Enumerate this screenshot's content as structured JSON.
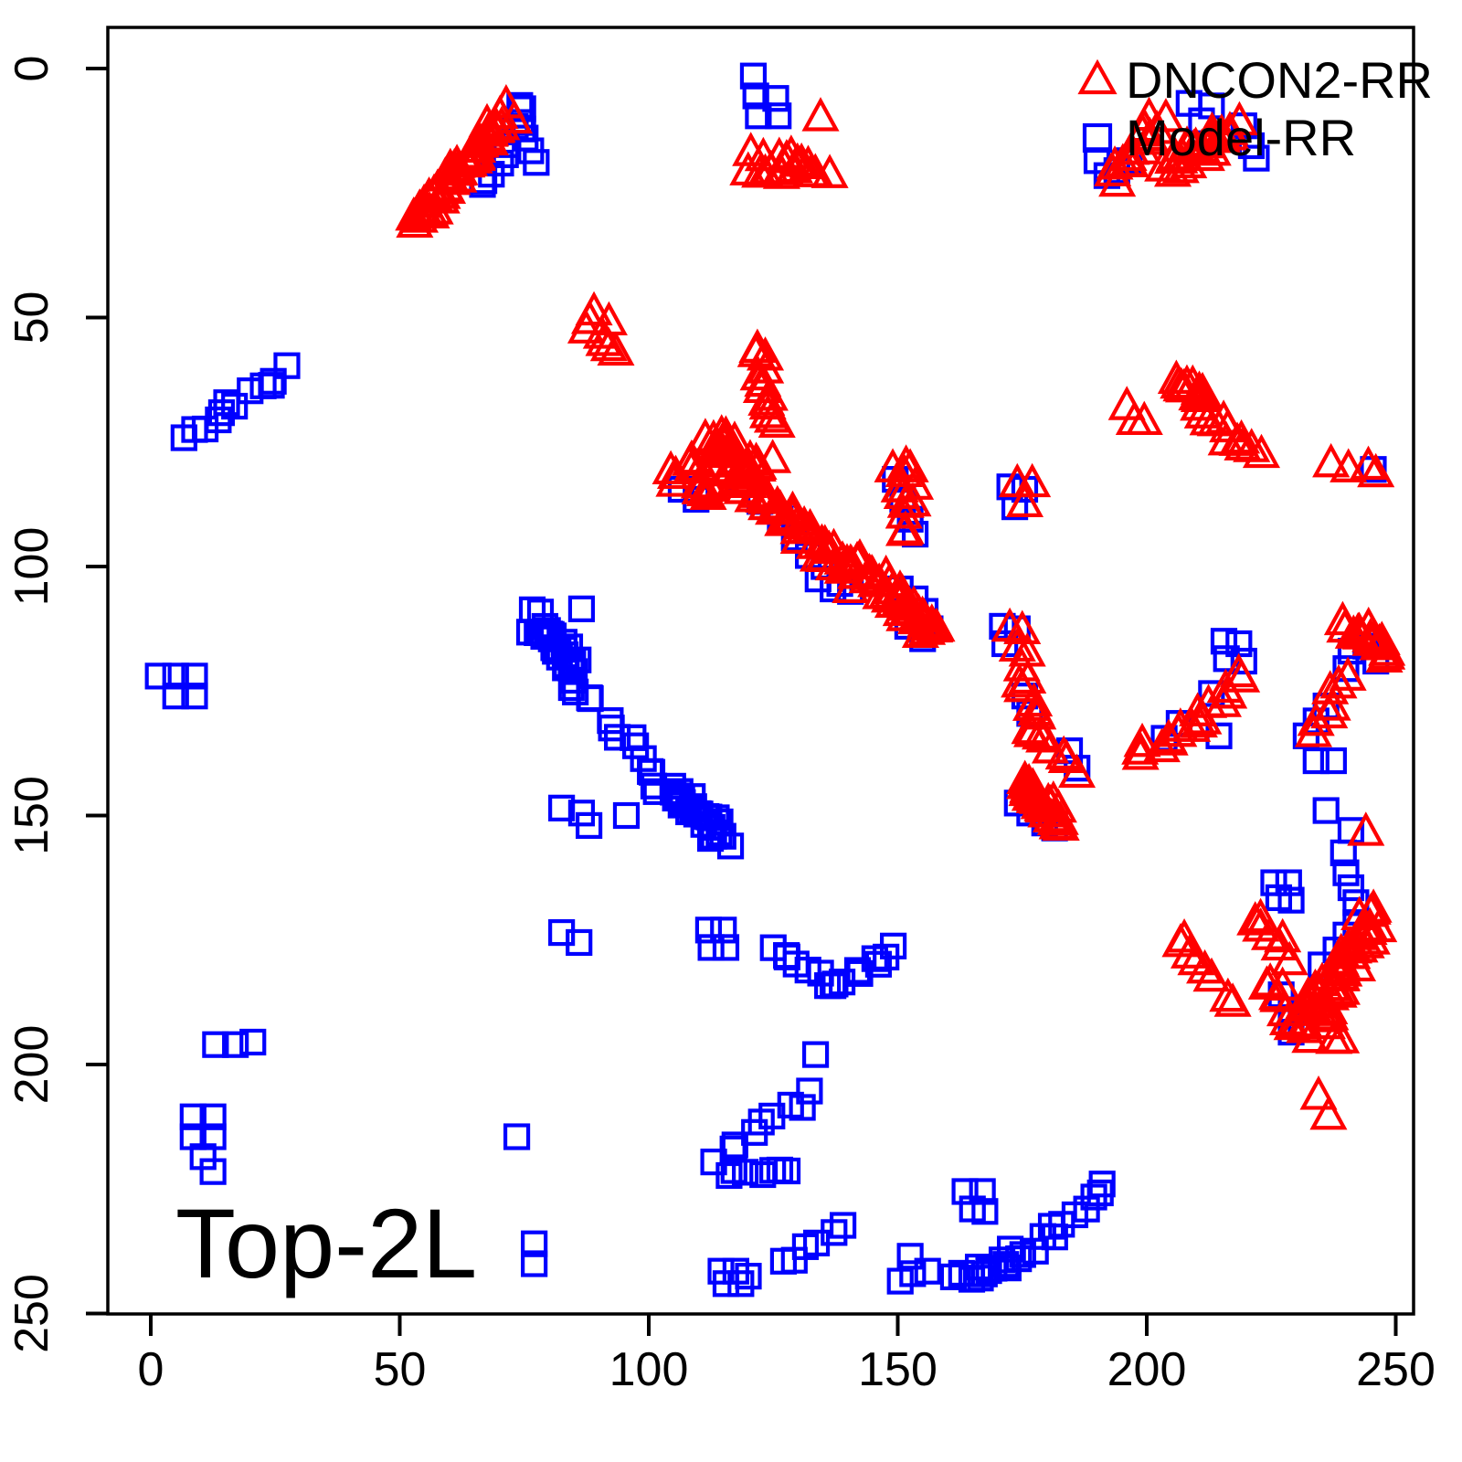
{
  "figure": {
    "background": "#FFFFFF",
    "box_color": "#000000",
    "annotation": "Top-2L"
  },
  "axes": {
    "x_ticks": [
      0,
      50,
      100,
      150,
      200,
      250
    ],
    "y_ticks": [
      0,
      50,
      100,
      150,
      200,
      250
    ],
    "xlim": [
      0,
      250
    ],
    "ylim": [
      0,
      250
    ],
    "y_inverted": true
  },
  "chart_data": {
    "type": "scatter",
    "title": "",
    "xlabel": "",
    "ylabel": "",
    "annotation": "Top-2L",
    "xlim": [
      0,
      250
    ],
    "ylim": [
      250,
      0
    ],
    "legend_position": "top-right",
    "grid": false,
    "series": [
      {
        "name": "DNCON2-RR",
        "marker": "triangle",
        "color": "#FF0000",
        "segments": [
          [
            52.5,
            31,
            72,
            9,
            36,
            1.6
          ],
          [
            54,
            29,
            70,
            12,
            18,
            1.2
          ],
          [
            87.5,
            50,
            93,
            57.5,
            6,
            1.2
          ],
          [
            121,
            20.5,
            135,
            20.5,
            12,
            1.4
          ],
          [
            126,
            17.5,
            130,
            18.5,
            4,
            0.8
          ],
          [
            193.5,
            22.5,
            202.5,
            10.5,
            16,
            1.8
          ],
          [
            204,
            21,
            218,
            12,
            20,
            2.0
          ],
          [
            206,
            19.5,
            213.5,
            14,
            10,
            1.5
          ],
          [
            121.5,
            57,
            124.5,
            71.5,
            13,
            1.5
          ],
          [
            105.5,
            82.5,
            117,
            75.5,
            14,
            2.0
          ],
          [
            109,
            85.5,
            121,
            78.5,
            14,
            2.0
          ],
          [
            112.5,
            73.5,
            123.5,
            80,
            12,
            1.8
          ],
          [
            117,
            81,
            142,
            101.5,
            26,
            1.6
          ],
          [
            120.5,
            84.5,
            140,
            103.5,
            16,
            1.5
          ],
          [
            142.5,
            99.5,
            158,
            114,
            28,
            1.8
          ],
          [
            146,
            103.5,
            156.5,
            112.5,
            12,
            1.5
          ],
          [
            150.5,
            80.5,
            152.5,
            93.5,
            9,
            1.3
          ],
          [
            206,
            62.5,
            222,
            79,
            18,
            1.6
          ],
          [
            206.5,
            63.5,
            212,
            66.5,
            6,
            1.2
          ],
          [
            240.5,
            111.5,
            249.5,
            118.5,
            16,
            1.5
          ],
          [
            239.5,
            122.5,
            234,
            133.5,
            7,
            1.1
          ],
          [
            174.5,
            121,
            177.5,
            131,
            8,
            1.2
          ],
          [
            177,
            132,
            185,
            141,
            8,
            1.3
          ],
          [
            174.5,
            143,
            182.5,
            151.5,
            18,
            1.8
          ],
          [
            176,
            145.5,
            183,
            152,
            10,
            1.4
          ],
          [
            197.5,
            138.5,
            210,
            131.5,
            10,
            1.4
          ],
          [
            210,
            130,
            219.5,
            123,
            8,
            1.4
          ],
          [
            206.5,
            174,
            217.5,
            187.5,
            8,
            1.4
          ],
          [
            221.5,
            170.5,
            229,
            178.5,
            7,
            1.2
          ],
          [
            231.5,
            189.5,
            245.5,
            169.5,
            26,
            1.6
          ],
          [
            234,
            190.5,
            247,
            172,
            16,
            1.4
          ],
          [
            224.5,
            183.5,
            232.5,
            195.5,
            12,
            1.5
          ],
          [
            235.5,
            188.5,
            238,
            195.5,
            6,
            1.3
          ]
        ],
        "points": [
          [
            134.5,
            10
          ],
          [
            89,
            49
          ],
          [
            92,
            51
          ],
          [
            196,
            68
          ],
          [
            197.5,
            71
          ],
          [
            199.5,
            71
          ],
          [
            240.5,
            80.5
          ],
          [
            244.5,
            80
          ],
          [
            246,
            81.5
          ],
          [
            237,
            79.5
          ],
          [
            172.5,
            112.5
          ],
          [
            175,
            113
          ],
          [
            174,
            116.5
          ],
          [
            176,
            117.5
          ],
          [
            149,
            80.5
          ],
          [
            152.5,
            80.5
          ],
          [
            150.5,
            84.5
          ],
          [
            153.5,
            84
          ],
          [
            174,
            83.5
          ],
          [
            177,
            83.5
          ],
          [
            175.5,
            87.5
          ],
          [
            244,
            153.5
          ],
          [
            234.5,
            206.5
          ],
          [
            236.5,
            210.5
          ],
          [
            120.5,
            17
          ],
          [
            123,
            18
          ]
        ]
      },
      {
        "name": "Model-RR",
        "marker": "square",
        "color": "#0000FF",
        "segments": [
          [
            73.5,
            6.5,
            76.5,
            19,
            7,
            1.0
          ],
          [
            66,
            24.5,
            74,
            12,
            7,
            1.3
          ],
          [
            7,
            74.5,
            27,
            60.5,
            12,
            1.2
          ],
          [
            76,
            110,
            87,
            123,
            20,
            2.2
          ],
          [
            78,
            112.5,
            86,
            121,
            10,
            1.6
          ],
          [
            88,
            126,
            101,
            140.5,
            9,
            1.4
          ],
          [
            102,
            142.5,
            115.5,
            154.5,
            20,
            2.0
          ],
          [
            105,
            145,
            114,
            153,
            10,
            1.5
          ],
          [
            119,
            84,
            139,
            103.5,
            7,
            0.8
          ],
          [
            113.5,
            218.5,
            132.5,
            206,
            9,
            1.1
          ],
          [
            116,
            222,
            128,
            221,
            7,
            0.9
          ],
          [
            127,
            240,
            139,
            233,
            6,
            0.9
          ],
          [
            162,
            243.5,
            176,
            237,
            14,
            1.7
          ],
          [
            177,
            236.5,
            192,
            224.5,
            10,
            1.2
          ],
          [
            125,
            177,
            137,
            184.5,
            8,
            1.1
          ],
          [
            137.5,
            183.5,
            149.5,
            177,
            8,
            1.1
          ]
        ],
        "points": [
          [
            121,
            1.5
          ],
          [
            121.5,
            5.5
          ],
          [
            125.5,
            6
          ],
          [
            122,
            9.5
          ],
          [
            126,
            9.5
          ],
          [
            208.5,
            7
          ],
          [
            213,
            7.5
          ],
          [
            211,
            10.5
          ],
          [
            219.5,
            11.5
          ],
          [
            221,
            15.5
          ],
          [
            222,
            18
          ],
          [
            194,
            20.5
          ],
          [
            196.5,
            18.5
          ],
          [
            190,
            18.5
          ],
          [
            192,
            21.5
          ],
          [
            1.5,
            122
          ],
          [
            5,
            122
          ],
          [
            8.8,
            122
          ],
          [
            5,
            126
          ],
          [
            8.8,
            126
          ],
          [
            86.5,
            108.5
          ],
          [
            82.5,
            148.5
          ],
          [
            86.5,
            149.5
          ],
          [
            88,
            152
          ],
          [
            95.5,
            150
          ],
          [
            106.5,
            84.5
          ],
          [
            109.5,
            86.5
          ],
          [
            134,
            102.5
          ],
          [
            137,
            104.5
          ],
          [
            140.5,
            105
          ],
          [
            150.5,
            104.5
          ],
          [
            153.5,
            106.5
          ],
          [
            155.5,
            109
          ],
          [
            156.5,
            112.5
          ],
          [
            152,
            112
          ],
          [
            155,
            114.5
          ],
          [
            149.5,
            82.5
          ],
          [
            151,
            86.5
          ],
          [
            152.5,
            90.5
          ],
          [
            153.5,
            93.5
          ],
          [
            172.5,
            84
          ],
          [
            175.5,
            84.5
          ],
          [
            173.5,
            88
          ],
          [
            245.5,
            80.5
          ],
          [
            171,
            112
          ],
          [
            174,
            112.5
          ],
          [
            171.5,
            115.5
          ],
          [
            175.5,
            126
          ],
          [
            176.5,
            129.5
          ],
          [
            184.5,
            137
          ],
          [
            186,
            140.5
          ],
          [
            174,
            147.5
          ],
          [
            176.5,
            149.5
          ],
          [
            179.5,
            151.5
          ],
          [
            181.5,
            152.5
          ],
          [
            203.5,
            134.5
          ],
          [
            206.5,
            131.5
          ],
          [
            213,
            125.5
          ],
          [
            214.5,
            134
          ],
          [
            215.5,
            115
          ],
          [
            218.5,
            115.5
          ],
          [
            216,
            118.5
          ],
          [
            219.5,
            119
          ],
          [
            241,
            117
          ],
          [
            244,
            116
          ],
          [
            246,
            119
          ],
          [
            240,
            120.5
          ],
          [
            236,
            128
          ],
          [
            234,
            131
          ],
          [
            232,
            134
          ],
          [
            234,
            139
          ],
          [
            237.5,
            139
          ],
          [
            225.5,
            163.5
          ],
          [
            228.5,
            163.5
          ],
          [
            226.5,
            166.5
          ],
          [
            229,
            167
          ],
          [
            239.5,
            157.5
          ],
          [
            240,
            161.5
          ],
          [
            241,
            164.5
          ],
          [
            242,
            167.5
          ],
          [
            235,
            180
          ],
          [
            238,
            177
          ],
          [
            240,
            174
          ],
          [
            242,
            171.5
          ],
          [
            227,
            186
          ],
          [
            229,
            189
          ],
          [
            231,
            192
          ],
          [
            229,
            193.5
          ],
          [
            133.5,
            198
          ],
          [
            236,
            149
          ],
          [
            241,
            153
          ],
          [
            13,
            196
          ],
          [
            17,
            196
          ],
          [
            20.5,
            195.5
          ],
          [
            8.5,
            210.5
          ],
          [
            12.5,
            210.5
          ],
          [
            8.5,
            214.5
          ],
          [
            12.5,
            214.5
          ],
          [
            10.5,
            218.5
          ],
          [
            12.5,
            221.5
          ],
          [
            73.5,
            214.5
          ],
          [
            77,
            236
          ],
          [
            77,
            240
          ],
          [
            114.5,
            241.5
          ],
          [
            117.5,
            241.5
          ],
          [
            120,
            242.5
          ],
          [
            115.5,
            244
          ],
          [
            118.5,
            244
          ],
          [
            163.5,
            225.5
          ],
          [
            167,
            225.5
          ],
          [
            165,
            229
          ],
          [
            167.5,
            229.5
          ],
          [
            152.5,
            238.5
          ],
          [
            153,
            242
          ],
          [
            156,
            241.5
          ],
          [
            150.5,
            243.5
          ],
          [
            112,
            173
          ],
          [
            115,
            173
          ],
          [
            112.5,
            176.5
          ],
          [
            115.5,
            176.5
          ],
          [
            82.5,
            173.5
          ],
          [
            86,
            175.5
          ]
        ]
      }
    ]
  }
}
